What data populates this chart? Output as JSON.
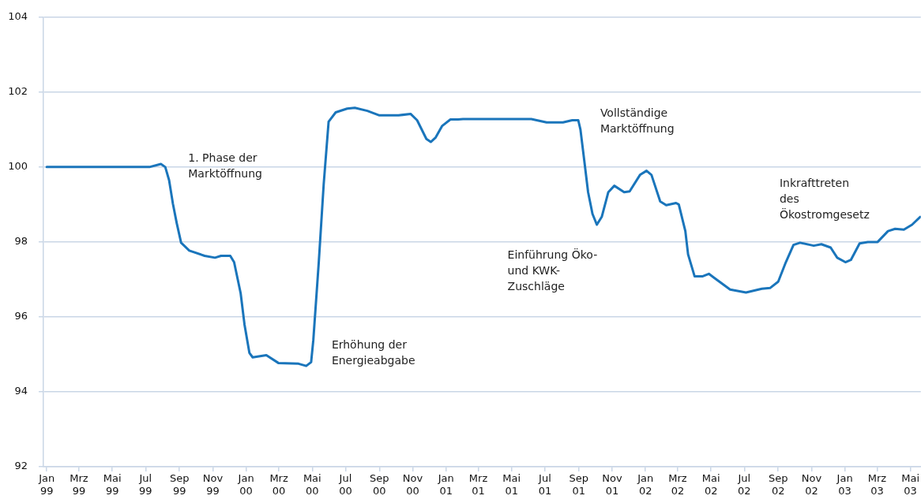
{
  "chart_data": {
    "type": "line",
    "x": [
      "1999-01-01",
      "1999-07-08",
      "1999-07-29",
      "1999-08-06",
      "1999-08-13",
      "1999-08-20",
      "1999-08-27",
      "1999-09-04",
      "1999-09-19",
      "1999-10-17",
      "1999-11-05",
      "1999-11-16",
      "1999-12-03",
      "1999-12-10",
      "1999-12-22",
      "1999-12-29",
      "2000-01-07",
      "2000-01-13",
      "2000-02-07",
      "2000-02-29",
      "2000-04-06",
      "2000-04-20",
      "2000-04-29",
      "2000-05-03",
      "2000-05-13",
      "2000-05-22",
      "2000-05-31",
      "2000-06-13",
      "2000-07-04",
      "2000-07-18",
      "2000-08-10",
      "2000-09-01",
      "2000-10-06",
      "2000-10-28",
      "2000-11-09",
      "2000-11-26",
      "2000-12-04",
      "2000-12-13",
      "2000-12-25",
      "2001-01-09",
      "2001-01-23",
      "2001-02-01",
      "2001-06-06",
      "2001-07-04",
      "2001-08-03",
      "2001-08-20",
      "2001-08-31",
      "2001-09-04",
      "2001-09-11",
      "2001-09-18",
      "2001-09-26",
      "2001-10-04",
      "2001-10-13",
      "2001-10-25",
      "2001-11-05",
      "2001-11-23",
      "2001-12-03",
      "2001-12-22",
      "2002-01-03",
      "2002-01-12",
      "2002-01-28",
      "2002-02-08",
      "2002-02-26",
      "2002-03-03",
      "2002-03-15",
      "2002-03-20",
      "2002-04-01",
      "2002-04-15",
      "2002-04-27",
      "2002-05-07",
      "2002-06-05",
      "2002-07-04",
      "2002-08-02",
      "2002-08-17",
      "2002-09-01",
      "2002-09-15",
      "2002-09-29",
      "2002-10-11",
      "2002-11-05",
      "2002-11-19",
      "2002-12-06",
      "2002-12-18",
      "2003-01-02",
      "2003-01-12",
      "2003-01-28",
      "2003-02-12",
      "2003-03-02",
      "2003-03-21",
      "2003-04-03",
      "2003-04-19",
      "2003-05-04",
      "2003-05-19"
    ],
    "series": [
      {
        "color": "#1a75bb",
        "values": [
          100.0,
          100.0,
          100.08,
          100.0,
          99.65,
          99.02,
          98.5,
          97.98,
          97.77,
          97.63,
          97.58,
          97.63,
          97.63,
          97.46,
          96.63,
          95.8,
          95.04,
          94.92,
          94.98,
          94.77,
          94.75,
          94.69,
          94.79,
          95.38,
          97.46,
          99.54,
          101.21,
          101.46,
          101.56,
          101.58,
          101.5,
          101.38,
          101.38,
          101.42,
          101.25,
          100.75,
          100.67,
          100.79,
          101.1,
          101.27,
          101.27,
          101.28,
          101.28,
          101.19,
          101.19,
          101.25,
          101.25,
          101.0,
          100.17,
          99.33,
          98.75,
          98.46,
          98.67,
          99.33,
          99.5,
          99.33,
          99.35,
          99.79,
          99.9,
          99.79,
          99.08,
          98.98,
          99.04,
          99.0,
          98.29,
          97.67,
          97.08,
          97.08,
          97.15,
          97.04,
          96.73,
          96.65,
          96.75,
          96.77,
          96.94,
          97.46,
          97.92,
          97.98,
          97.9,
          97.94,
          97.85,
          97.58,
          97.46,
          97.52,
          97.96,
          98.0,
          98.0,
          98.29,
          98.35,
          98.33,
          98.46,
          98.67
        ]
      }
    ],
    "xlim": [
      "1998-12-26",
      "2003-05-20"
    ],
    "xticks": [
      {
        "value": "1999-01",
        "label": "Jan 99"
      },
      {
        "value": "1999-03",
        "label": "Mrz 99"
      },
      {
        "value": "1999-05",
        "label": "Mai 99"
      },
      {
        "value": "1999-07",
        "label": "Jul 99"
      },
      {
        "value": "1999-09",
        "label": "Sep 99"
      },
      {
        "value": "1999-11",
        "label": "Nov 99"
      },
      {
        "value": "2000-01",
        "label": "Jan 00"
      },
      {
        "value": "2000-03",
        "label": "Mrz 00"
      },
      {
        "value": "2000-05",
        "label": "Mai 00"
      },
      {
        "value": "2000-07",
        "label": "Jul 00"
      },
      {
        "value": "2000-09",
        "label": "Sep 00"
      },
      {
        "value": "2000-11",
        "label": "Nov 00"
      },
      {
        "value": "2001-01",
        "label": "Jan 01"
      },
      {
        "value": "2001-03",
        "label": "Mrz 01"
      },
      {
        "value": "2001-05",
        "label": "Mai 01"
      },
      {
        "value": "2001-07",
        "label": "Jul 01"
      },
      {
        "value": "2001-09",
        "label": "Sep 01"
      },
      {
        "value": "2001-11",
        "label": "Nov 01"
      },
      {
        "value": "2002-01",
        "label": "Jan 02"
      },
      {
        "value": "2002-03",
        "label": "Mrz 02"
      },
      {
        "value": "2002-05",
        "label": "Mai 02"
      },
      {
        "value": "2002-07",
        "label": "Jul 02"
      },
      {
        "value": "2002-09",
        "label": "Sep 02"
      },
      {
        "value": "2002-11",
        "label": "Nov 02"
      },
      {
        "value": "2003-01",
        "label": "Jan 03"
      },
      {
        "value": "2003-03",
        "label": "Mrz 03"
      },
      {
        "value": "2003-05",
        "label": "Mai 03"
      }
    ],
    "ylim": [
      92,
      104
    ],
    "yticks": [
      92,
      94,
      96,
      98,
      100,
      102,
      104
    ],
    "grid": "y",
    "legend": false,
    "annotations": [
      "1. Phase der\nMarktöffnung",
      "Erhöhung der\nEnergieabgabe",
      "Vollständige\nMarktöffnung",
      "Einführung Öko-\nund KWK-\nZuschläge",
      "Inkrafttreten\ndes\nÖkostromgesetz"
    ]
  }
}
